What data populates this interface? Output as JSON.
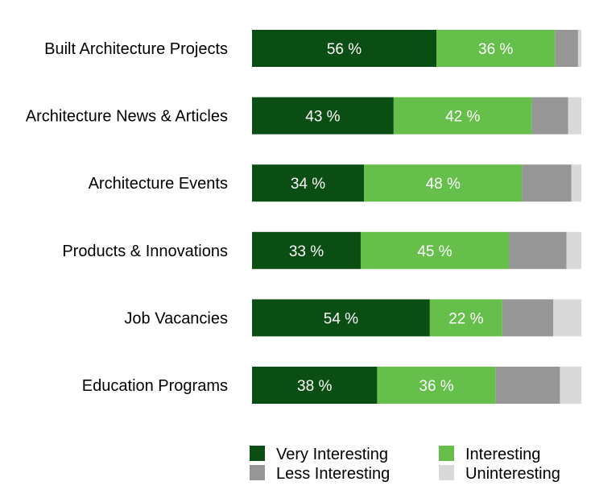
{
  "chart_data": {
    "type": "bar",
    "orientation": "horizontal",
    "stacked": true,
    "percent_stacked": true,
    "categories": [
      "Built Architecture Projects",
      "Architecture News & Articles",
      "Architecture Events",
      "Products & Innovations",
      "Job Vacancies",
      "Education Programs"
    ],
    "series": [
      {
        "name": "Very Interesting",
        "color": "#0b4e13",
        "values": [
          56,
          43,
          34,
          33,
          54,
          38
        ],
        "labels": [
          "56 %",
          "43 %",
          "34 %",
          "33 %",
          "54 %",
          "38 %"
        ]
      },
      {
        "name": "Interesting",
        "color": "#66bf4b",
        "values": [
          36,
          42,
          48,
          45,
          22,
          36
        ],
        "labels": [
          "36 %",
          "42 %",
          "48 %",
          "45 %",
          "22 %",
          "36 %"
        ]
      },
      {
        "name": "Less Interesting",
        "color": "#969696",
        "values": [
          7,
          11,
          15,
          17.5,
          15.5,
          19.5
        ],
        "labels": [
          "",
          "",
          "",
          "",
          "",
          ""
        ]
      },
      {
        "name": "Uninteresting",
        "color": "#d9d9d9",
        "values": [
          1,
          4,
          3,
          4.5,
          8.5,
          6.5
        ],
        "labels": [
          "",
          "",
          "",
          "",
          "",
          ""
        ]
      }
    ],
    "xlim": [
      0,
      100
    ],
    "grid": false,
    "legend": {
      "position": "bottom",
      "columns": 2
    }
  }
}
